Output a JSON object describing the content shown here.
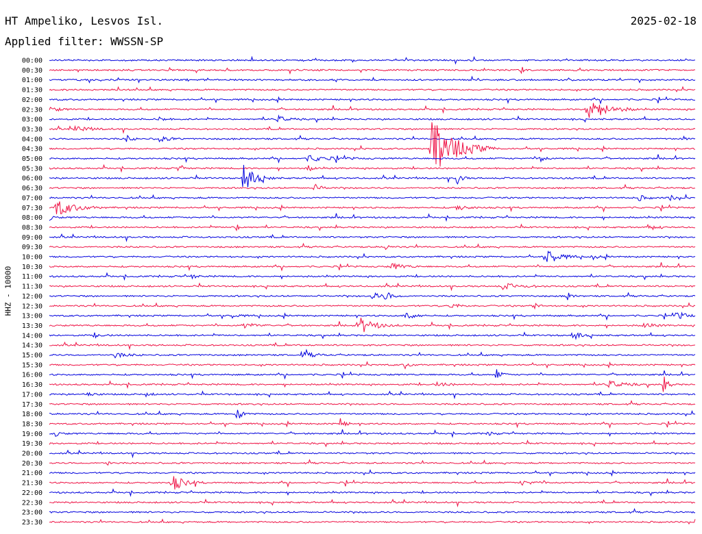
{
  "header": {
    "station": "HT Ampeliko, Lesvos Isl.",
    "date": "2025-02-18",
    "filter": "Applied filter: WWSSN-SP"
  },
  "channel_label": "HHZ - 10000",
  "colors": {
    "blue_trace": "#0000dd",
    "red_trace": "#ee1144",
    "background": "#ffffff"
  },
  "chart_data": {
    "type": "line",
    "description_kind": "helicorder",
    "y_tick_labels": [
      "00:00",
      "00:30",
      "01:00",
      "01:30",
      "02:00",
      "02:30",
      "03:00",
      "03:30",
      "04:00",
      "04:30",
      "05:00",
      "05:30",
      "06:00",
      "06:30",
      "07:00",
      "07:30",
      "08:00",
      "08:30",
      "09:00",
      "09:30",
      "10:00",
      "10:30",
      "11:00",
      "11:30",
      "12:00",
      "12:30",
      "13:00",
      "13:30",
      "14:00",
      "14:30",
      "15:00",
      "15:30",
      "16:00",
      "16:30",
      "17:00",
      "17:30",
      "18:00",
      "18:30",
      "19:00",
      "19:30",
      "20:00",
      "20:30",
      "21:00",
      "21:30",
      "22:00",
      "22:30",
      "23:00",
      "23:30"
    ],
    "trace_colors": [
      "blue",
      "red"
    ],
    "events": [
      {
        "row": 1,
        "pos": 0.73,
        "amp": 6,
        "dur": 0.01
      },
      {
        "row": 5,
        "pos": 0.0,
        "amp": 4,
        "dur": 0.04
      },
      {
        "row": 5,
        "pos": 0.83,
        "amp": 18,
        "dur": 0.08
      },
      {
        "row": 6,
        "pos": 0.35,
        "amp": 6,
        "dur": 0.04
      },
      {
        "row": 6,
        "pos": 0.17,
        "amp": 4,
        "dur": 0.02
      },
      {
        "row": 7,
        "pos": 0.04,
        "amp": 4,
        "dur": 0.06
      },
      {
        "row": 8,
        "pos": 0.12,
        "amp": 5,
        "dur": 0.02
      },
      {
        "row": 8,
        "pos": 0.17,
        "amp": 4,
        "dur": 0.04
      },
      {
        "row": 8,
        "pos": 0.98,
        "amp": 7,
        "dur": 0.01
      },
      {
        "row": 9,
        "pos": 0.59,
        "amp": 45,
        "dur": 0.1
      },
      {
        "row": 10,
        "pos": 0.4,
        "amp": 4,
        "dur": 0.1
      },
      {
        "row": 10,
        "pos": 0.76,
        "amp": 8,
        "dur": 0.02
      },
      {
        "row": 11,
        "pos": 0.2,
        "amp": 4,
        "dur": 0.02
      },
      {
        "row": 11,
        "pos": 0.4,
        "amp": 5,
        "dur": 0.02
      },
      {
        "row": 12,
        "pos": 0.3,
        "amp": 20,
        "dur": 0.05
      },
      {
        "row": 12,
        "pos": 0.63,
        "amp": 10,
        "dur": 0.02
      },
      {
        "row": 13,
        "pos": 0.41,
        "amp": 5,
        "dur": 0.03
      },
      {
        "row": 14,
        "pos": 0.91,
        "amp": 5,
        "dur": 0.03
      },
      {
        "row": 14,
        "pos": 0.96,
        "amp": 4,
        "dur": 0.03
      },
      {
        "row": 15,
        "pos": 0.01,
        "amp": 12,
        "dur": 0.08
      },
      {
        "row": 15,
        "pos": 0.63,
        "amp": 4,
        "dur": 0.05
      },
      {
        "row": 16,
        "pos": 0.0,
        "amp": 4,
        "dur": 0.02
      },
      {
        "row": 17,
        "pos": 0.29,
        "amp": 5,
        "dur": 0.02
      },
      {
        "row": 17,
        "pos": 0.93,
        "amp": 4,
        "dur": 0.03
      },
      {
        "row": 19,
        "pos": 0.52,
        "amp": 6,
        "dur": 0.01
      },
      {
        "row": 20,
        "pos": 0.77,
        "amp": 12,
        "dur": 0.05
      },
      {
        "row": 20,
        "pos": 0.84,
        "amp": 4,
        "dur": 0.02
      },
      {
        "row": 21,
        "pos": 0.53,
        "amp": 5,
        "dur": 0.05
      },
      {
        "row": 22,
        "pos": 0.22,
        "amp": 4,
        "dur": 0.02
      },
      {
        "row": 23,
        "pos": 0.7,
        "amp": 4,
        "dur": 0.08
      },
      {
        "row": 24,
        "pos": 0.5,
        "amp": 6,
        "dur": 0.03
      },
      {
        "row": 24,
        "pos": 0.52,
        "amp": 6,
        "dur": 0.03
      },
      {
        "row": 24,
        "pos": 0.8,
        "amp": 7,
        "dur": 0.02
      },
      {
        "row": 25,
        "pos": 0.62,
        "amp": 5,
        "dur": 0.03
      },
      {
        "row": 25,
        "pos": 0.75,
        "amp": 5,
        "dur": 0.02
      },
      {
        "row": 26,
        "pos": 0.28,
        "amp": 4,
        "dur": 0.03
      },
      {
        "row": 26,
        "pos": 0.55,
        "amp": 6,
        "dur": 0.04
      },
      {
        "row": 26,
        "pos": 0.97,
        "amp": 5,
        "dur": 0.05
      },
      {
        "row": 27,
        "pos": 0.48,
        "amp": 12,
        "dur": 0.06
      },
      {
        "row": 27,
        "pos": 0.3,
        "amp": 4,
        "dur": 0.05
      },
      {
        "row": 27,
        "pos": 0.92,
        "amp": 4,
        "dur": 0.04
      },
      {
        "row": 28,
        "pos": 0.81,
        "amp": 7,
        "dur": 0.03
      },
      {
        "row": 28,
        "pos": 0.07,
        "amp": 3,
        "dur": 0.03
      },
      {
        "row": 30,
        "pos": 0.1,
        "amp": 4,
        "dur": 0.05
      },
      {
        "row": 30,
        "pos": 0.39,
        "amp": 5,
        "dur": 0.05
      },
      {
        "row": 31,
        "pos": 0.55,
        "amp": 5,
        "dur": 0.02
      },
      {
        "row": 32,
        "pos": 0.69,
        "amp": 10,
        "dur": 0.02
      },
      {
        "row": 33,
        "pos": 0.86,
        "amp": 7,
        "dur": 0.06
      },
      {
        "row": 33,
        "pos": 0.95,
        "amp": 12,
        "dur": 0.02
      },
      {
        "row": 33,
        "pos": 0.6,
        "amp": 3,
        "dur": 0.05
      },
      {
        "row": 34,
        "pos": 0.06,
        "amp": 5,
        "dur": 0.02
      },
      {
        "row": 34,
        "pos": 0.15,
        "amp": 4,
        "dur": 0.02
      },
      {
        "row": 36,
        "pos": 0.29,
        "amp": 12,
        "dur": 0.02
      },
      {
        "row": 37,
        "pos": 0.45,
        "amp": 8,
        "dur": 0.02
      },
      {
        "row": 38,
        "pos": 0.01,
        "amp": 4,
        "dur": 0.02
      },
      {
        "row": 38,
        "pos": 0.68,
        "amp": 4,
        "dur": 0.02
      },
      {
        "row": 41,
        "pos": 0.09,
        "amp": 6,
        "dur": 0.01
      },
      {
        "row": 43,
        "pos": 0.19,
        "amp": 12,
        "dur": 0.05
      },
      {
        "row": 43,
        "pos": 0.73,
        "amp": 3,
        "dur": 0.06
      }
    ]
  }
}
